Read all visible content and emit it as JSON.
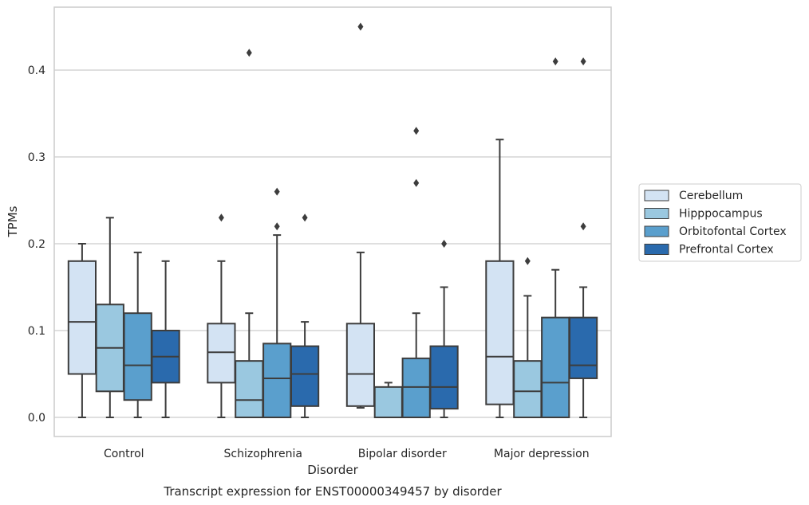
{
  "chart_data": {
    "type": "box",
    "title": "",
    "caption": "Transcript expression for ENST00000349457 by disorder",
    "xlabel": "Disorder",
    "ylabel": "TPMs",
    "ylim": [
      -0.022,
      0.475
    ],
    "yticks": [
      0.0,
      0.1,
      0.2,
      0.3,
      0.4
    ],
    "ytick_labels": [
      "0.0",
      "0.1",
      "0.2",
      "0.3",
      "0.4"
    ],
    "grid": "horizontal",
    "legend_position": "right",
    "categories": [
      "Control",
      "Schizophrenia",
      "Bipolar disorder",
      "Major depression"
    ],
    "series": [
      {
        "name": "Cerebellum",
        "color": "#d3e3f3",
        "boxes": [
          {
            "whislo": 0.0,
            "q1": 0.05,
            "med": 0.11,
            "q3": 0.18,
            "whishi": 0.2,
            "fliers": []
          },
          {
            "whislo": 0.0,
            "q1": 0.04,
            "med": 0.075,
            "q3": 0.108,
            "whishi": 0.18,
            "fliers": [
              0.23
            ]
          },
          {
            "whislo": 0.011,
            "q1": 0.013,
            "med": 0.05,
            "q3": 0.108,
            "whishi": 0.19,
            "fliers": [
              0.45
            ]
          },
          {
            "whislo": 0.0,
            "q1": 0.015,
            "med": 0.07,
            "q3": 0.18,
            "whishi": 0.32,
            "fliers": []
          }
        ]
      },
      {
        "name": "Hipppocampus",
        "color": "#9ac8e0",
        "boxes": [
          {
            "whislo": 0.0,
            "q1": 0.03,
            "med": 0.08,
            "q3": 0.13,
            "whishi": 0.23,
            "fliers": []
          },
          {
            "whislo": 0.0,
            "q1": 0.0,
            "med": 0.02,
            "q3": 0.065,
            "whishi": 0.12,
            "fliers": [
              0.42
            ]
          },
          {
            "whislo": 0.0,
            "q1": 0.0,
            "med": 0.0,
            "q3": 0.035,
            "whishi": 0.04,
            "fliers": []
          },
          {
            "whislo": 0.0,
            "q1": 0.0,
            "med": 0.03,
            "q3": 0.065,
            "whishi": 0.14,
            "fliers": [
              0.18
            ]
          }
        ]
      },
      {
        "name": "Orbitofontal Cortex",
        "color": "#5a9fcd",
        "boxes": [
          {
            "whislo": 0.0,
            "q1": 0.02,
            "med": 0.06,
            "q3": 0.12,
            "whishi": 0.19,
            "fliers": []
          },
          {
            "whislo": 0.0,
            "q1": 0.0,
            "med": 0.045,
            "q3": 0.085,
            "whishi": 0.21,
            "fliers": [
              0.22,
              0.26
            ]
          },
          {
            "whislo": 0.0,
            "q1": 0.0,
            "med": 0.035,
            "q3": 0.068,
            "whishi": 0.12,
            "fliers": [
              0.27,
              0.33
            ]
          },
          {
            "whislo": 0.0,
            "q1": 0.0,
            "med": 0.04,
            "q3": 0.115,
            "whishi": 0.17,
            "fliers": [
              0.41
            ]
          }
        ]
      },
      {
        "name": "Prefrontal Cortex",
        "color": "#2a6aad",
        "boxes": [
          {
            "whislo": 0.0,
            "q1": 0.04,
            "med": 0.07,
            "q3": 0.1,
            "whishi": 0.18,
            "fliers": []
          },
          {
            "whislo": 0.0,
            "q1": 0.013,
            "med": 0.05,
            "q3": 0.082,
            "whishi": 0.11,
            "fliers": [
              0.23
            ]
          },
          {
            "whislo": 0.0,
            "q1": 0.01,
            "med": 0.035,
            "q3": 0.082,
            "whishi": 0.15,
            "fliers": [
              0.2
            ]
          },
          {
            "whislo": 0.0,
            "q1": 0.045,
            "med": 0.06,
            "q3": 0.115,
            "whishi": 0.15,
            "fliers": [
              0.22,
              0.41
            ]
          }
        ]
      }
    ]
  }
}
